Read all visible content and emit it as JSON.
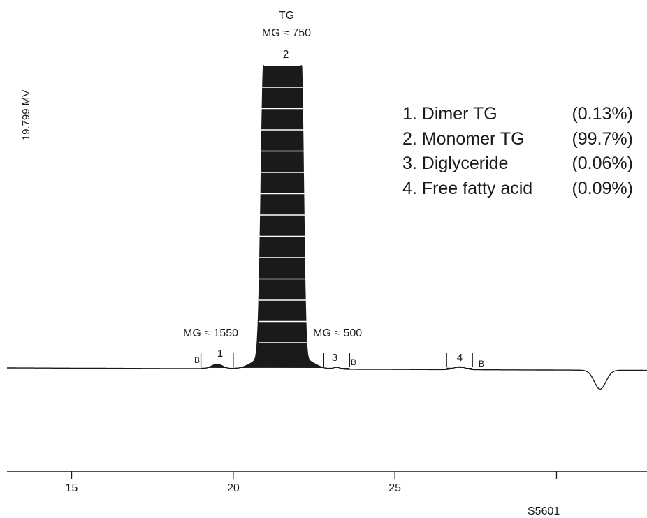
{
  "chart_data": {
    "type": "line",
    "title": "",
    "xlabel": "",
    "ylabel": "19.799 MV",
    "xlim": [
      13,
      32.8
    ],
    "ylim": [
      -0.8,
      10
    ],
    "xticks": [
      15,
      20,
      25,
      30
    ],
    "xtick_labels": [
      "15",
      "20",
      "25",
      ""
    ],
    "grid": false,
    "legend_position": "top-right",
    "trace_color": "#1a1a1a",
    "baseline": 0,
    "peaks": [
      {
        "id": "1",
        "name": "Dimer TG",
        "percent": "(0.13%)",
        "center": 19.5,
        "height": 0.14,
        "width": 0.35
      },
      {
        "id": "2",
        "name": "Monomer TG",
        "percent": "(99.7%)",
        "center": 21.5,
        "height": 9.6,
        "width": 0.5
      },
      {
        "id": "3",
        "name": "Diglyceride",
        "percent": "(0.06%)",
        "center": 23.2,
        "height": 0.06,
        "width": 0.2
      },
      {
        "id": "4",
        "name": "Free fatty acid",
        "percent": "(0.09%)",
        "center": 27.0,
        "height": 0.09,
        "width": 0.35
      }
    ],
    "dip": {
      "center": 31.35,
      "depth": -0.6,
      "width": 0.18
    },
    "peak_markers": [
      {
        "x": 19.0,
        "tag": "B"
      },
      {
        "x": 20.0,
        "tag": ""
      },
      {
        "x": 22.8,
        "tag": ""
      },
      {
        "x": 23.6,
        "tag": "B"
      },
      {
        "x": 26.6,
        "tag": ""
      },
      {
        "x": 27.4,
        "tag": "B"
      }
    ],
    "annotations": {
      "tg_label": "TG",
      "mg750": "MG ≈ 750",
      "mg1550": "MG ≈ 1550",
      "mg500": "MG ≈ 500",
      "peak1": "1",
      "peak2": "2",
      "peak3": "3",
      "peak4": "4",
      "b_marker": "B",
      "sample_id": "S5601"
    }
  },
  "legend": [
    {
      "label": "1. Dimer TG",
      "percent": "(0.13%)"
    },
    {
      "label": "2. Monomer TG",
      "percent": "(99.7%)"
    },
    {
      "label": "3. Diglyceride",
      "percent": "(0.06%)"
    },
    {
      "label": "4. Free fatty acid",
      "percent": "(0.09%)"
    }
  ]
}
